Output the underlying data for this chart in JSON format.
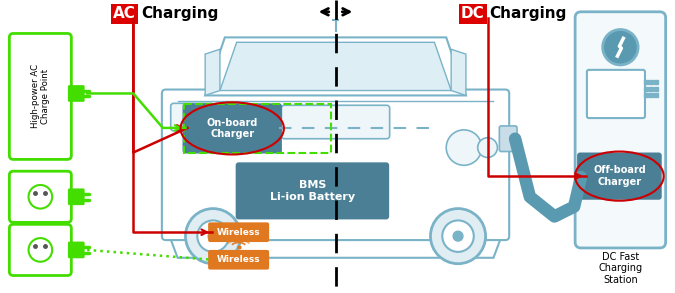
{
  "bg_color": "#ffffff",
  "car_body_color": "#7ab3c8",
  "car_fill": "#ffffff",
  "dark_teal": "#5a9ab0",
  "box_onboard_color": "#4a7f96",
  "box_bms_color": "#4a7f96",
  "box_wireless_color": "#e07820",
  "box_offboard_color": "#4a7f96",
  "ac_label_bg": "#dd0000",
  "dc_label_bg": "#dd0000",
  "green_color": "#44dd00",
  "red_color": "#cc0000",
  "orange_color": "#e07820",
  "station_color": "#7ab3c8",
  "title_ac": "AC",
  "title_dc": "DC",
  "charging_text": "Charging",
  "onboard_text": "On-board\nCharger",
  "bms_text": "BMS\nLi-ion Battery",
  "wireless_text1": "Wireless",
  "wireless_text2": "Wireless",
  "offboard_text": "Off-board\nCharger",
  "ac_side_text": "High-power AC\nCharge Point",
  "dc_side_text": "DC Fast\nCharging\nStation"
}
